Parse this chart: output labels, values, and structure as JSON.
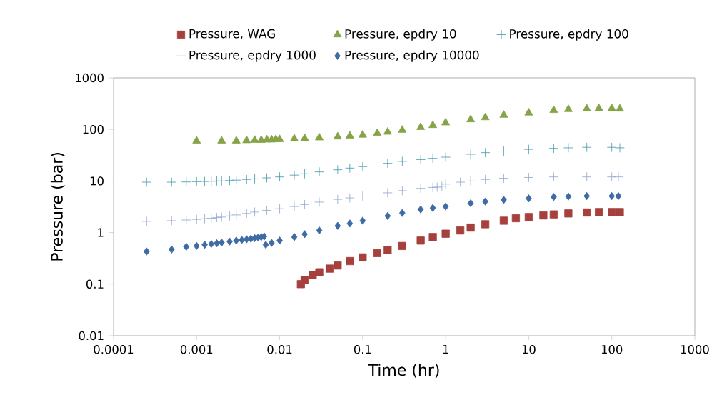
{
  "chart_data": {
    "type": "scatter",
    "xlabel": "Time (hr)",
    "ylabel": "Pressure (bar)",
    "log": "xy",
    "grid": false,
    "legend": "top",
    "xlim": [
      0.0001,
      1000
    ],
    "ylim": [
      0.01,
      1000
    ],
    "xticks": [
      0.0001,
      0.001,
      0.01,
      0.1,
      1,
      10,
      100,
      1000
    ],
    "yticks": [
      0.01,
      0.1,
      1,
      10,
      100,
      1000
    ],
    "series": [
      {
        "name": "Pressure, WAG",
        "color": "#a5403d",
        "marker": "square",
        "x": [
          0.018,
          0.02,
          0.025,
          0.03,
          0.04,
          0.05,
          0.07,
          0.1,
          0.15,
          0.2,
          0.3,
          0.5,
          0.7,
          1,
          1.5,
          2,
          3,
          5,
          7,
          10,
          15,
          20,
          30,
          50,
          70,
          100,
          125
        ],
        "values": [
          0.1,
          0.12,
          0.15,
          0.17,
          0.2,
          0.23,
          0.28,
          0.33,
          0.4,
          0.46,
          0.55,
          0.7,
          0.82,
          0.95,
          1.1,
          1.25,
          1.45,
          1.7,
          1.9,
          2.0,
          2.15,
          2.25,
          2.35,
          2.45,
          2.5,
          2.5,
          2.5
        ]
      },
      {
        "name": "Pressure, epdry 10",
        "color": "#86a348",
        "marker": "triangle",
        "x": [
          0.001,
          0.002,
          0.003,
          0.004,
          0.005,
          0.006,
          0.007,
          0.008,
          0.009,
          0.01,
          0.015,
          0.02,
          0.03,
          0.05,
          0.07,
          0.1,
          0.15,
          0.2,
          0.3,
          0.5,
          0.7,
          1,
          2,
          3,
          5,
          10,
          20,
          30,
          50,
          70,
          100,
          125
        ],
        "values": [
          60,
          60,
          60,
          61,
          62,
          62,
          63,
          63,
          64,
          64,
          66,
          67,
          69,
          72,
          75,
          78,
          84,
          89,
          97,
          110,
          120,
          135,
          155,
          170,
          190,
          210,
          235,
          245,
          252,
          255,
          255,
          250
        ]
      },
      {
        "name": "Pressure, epdry 100",
        "color": "#3d96ab",
        "marker": "cross",
        "x": [
          0.00025,
          0.0005,
          0.00075,
          0.001,
          0.00125,
          0.0015,
          0.00175,
          0.002,
          0.0025,
          0.003,
          0.004,
          0.005,
          0.007,
          0.01,
          0.015,
          0.02,
          0.03,
          0.05,
          0.07,
          0.1,
          0.2,
          0.3,
          0.5,
          0.7,
          1,
          2,
          3,
          5,
          10,
          20,
          30,
          50,
          100,
          125
        ],
        "values": [
          9.5,
          9.5,
          9.6,
          9.7,
          9.8,
          9.9,
          10,
          10,
          10.2,
          10.4,
          10.7,
          11,
          11.5,
          12,
          13,
          13.8,
          15,
          16.5,
          17.8,
          19,
          22,
          24,
          26,
          27.5,
          29,
          33,
          35.5,
          38,
          41,
          43,
          44,
          45,
          45,
          44
        ]
      },
      {
        "name": "Pressure, epdry 1000",
        "color": "#8ea5cb",
        "marker": "cross",
        "x": [
          0.00025,
          0.0005,
          0.00075,
          0.001,
          0.00125,
          0.0015,
          0.00175,
          0.002,
          0.0025,
          0.003,
          0.004,
          0.005,
          0.007,
          0.01,
          0.015,
          0.02,
          0.03,
          0.05,
          0.07,
          0.1,
          0.2,
          0.3,
          0.5,
          0.7,
          0.79,
          0.9,
          1,
          1.5,
          2,
          3,
          5,
          10,
          20,
          50,
          100,
          120
        ],
        "values": [
          1.65,
          1.7,
          1.75,
          1.8,
          1.85,
          1.9,
          1.95,
          2,
          2.1,
          2.2,
          2.35,
          2.5,
          2.7,
          2.9,
          3.2,
          3.5,
          3.9,
          4.4,
          4.7,
          5.1,
          5.9,
          6.5,
          7.2,
          7.5,
          7.6,
          7.9,
          8.7,
          9.5,
          10,
          10.7,
          11.3,
          11.7,
          12,
          12,
          12,
          12
        ]
      },
      {
        "name": "Pressure, epdry 10000",
        "color": "#3f6ba4",
        "marker": "diamond",
        "x": [
          0.00025,
          0.0005,
          0.00075,
          0.001,
          0.00125,
          0.0015,
          0.00175,
          0.002,
          0.0025,
          0.003,
          0.0035,
          0.004,
          0.0045,
          0.005,
          0.0055,
          0.006,
          0.0065,
          0.0068,
          0.008,
          0.01,
          0.015,
          0.02,
          0.03,
          0.05,
          0.07,
          0.1,
          0.2,
          0.3,
          0.5,
          0.7,
          1,
          2,
          3,
          5,
          10,
          20,
          30,
          50,
          100,
          120
        ],
        "values": [
          0.43,
          0.47,
          0.53,
          0.55,
          0.58,
          0.6,
          0.62,
          0.64,
          0.67,
          0.7,
          0.72,
          0.74,
          0.76,
          0.78,
          0.8,
          0.82,
          0.84,
          0.58,
          0.63,
          0.7,
          0.82,
          0.93,
          1.1,
          1.35,
          1.5,
          1.7,
          2.1,
          2.4,
          2.8,
          3.0,
          3.2,
          3.7,
          4.0,
          4.3,
          4.6,
          4.9,
          5.0,
          5.1,
          5.1,
          5.1
        ]
      }
    ]
  }
}
